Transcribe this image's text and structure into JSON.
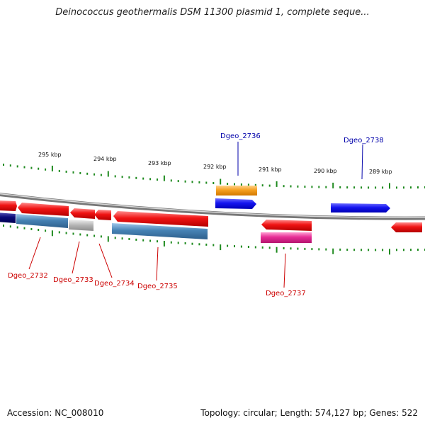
{
  "title": "Deinococcus geothermalis DSM 11300 plasmid 1, complete seque...",
  "footer": {
    "accession": "Accession: NC_008010",
    "summary": "Topology: circular; Length: 574,127 bp; Genes: 522"
  },
  "scale_labels": [
    "295 kbp",
    "294 kbp",
    "293 kbp",
    "292 kbp",
    "291 kbp",
    "290 kbp",
    "289 kbp"
  ],
  "forward_genes": [
    {
      "label": "Dgeo_2736",
      "color": "#00008b"
    },
    {
      "label": "Dgeo_2738",
      "color": "#00008b"
    }
  ],
  "reverse_genes": [
    {
      "label": "Dgeo_2732",
      "color": "#cc0000"
    },
    {
      "label": "Dgeo_2733",
      "color": "#cc0000"
    },
    {
      "label": "Dgeo_2734",
      "color": "#cc0000"
    },
    {
      "label": "Dgeo_2735",
      "color": "#cc0000"
    },
    {
      "label": "Dgeo_2737",
      "color": "#cc0000"
    }
  ],
  "colors": {
    "cds_red": "#e8141e",
    "cds_blue": "#1414e6",
    "cds_orange": "#f5a020",
    "cog_steelblue": "#4682b4",
    "cog_gray": "#b4b4b4",
    "cog_pink": "#e62d96",
    "cog_navy": "#0a0a78",
    "ticks_green": "#1f8a1f",
    "backbone": "#888888"
  }
}
